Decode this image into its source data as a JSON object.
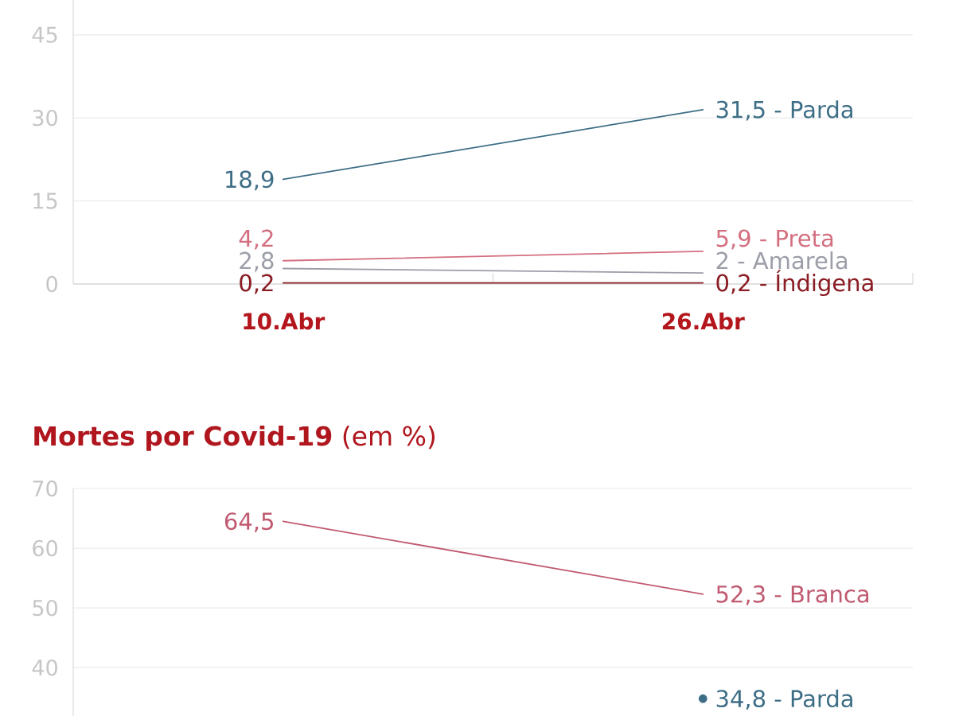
{
  "chart_data": [
    {
      "type": "line",
      "categories": [
        "10.Abr",
        "26.Abr"
      ],
      "ylim": [
        0,
        51.3
      ],
      "yticks": [
        0,
        15,
        30,
        45
      ],
      "grid": "y",
      "series": [
        {
          "color": "#3e6e86",
          "values": [
            18.9,
            31.5
          ],
          "value_labels": [
            "18,9",
            "31,5 - Parda"
          ]
        },
        {
          "color": "#d46f80",
          "values": [
            4.2,
            5.9
          ],
          "value_labels": [
            "4,2",
            "5,9 - Preta"
          ]
        },
        {
          "color": "#9c9ea8",
          "values": [
            2.8,
            2
          ],
          "value_labels": [
            "2,8",
            "2 - Amarela"
          ]
        },
        {
          "color": "#8a1d24",
          "values": [
            0.2,
            0.2
          ],
          "value_labels": [
            "0,2",
            "0,2 - Índigena"
          ]
        }
      ]
    },
    {
      "type": "line",
      "title": "**Mortes por Covid-19** (em %)",
      "categories": [
        null,
        null
      ],
      "ylim": [
        31.9,
        70
      ],
      "yticks": [
        40,
        50,
        60,
        70
      ],
      "grid": "y",
      "series": [
        {
          "color": "#c05a70",
          "values": [
            64.5,
            52.3
          ],
          "value_labels": [
            "64,5",
            "52,3 - Branca"
          ]
        },
        {
          "color": "#3e6e86",
          "values": [
            null,
            34.8
          ],
          "value_labels": [
            null,
            "34,8 - Parda"
          ],
          "marker": "circle"
        }
      ]
    }
  ]
}
